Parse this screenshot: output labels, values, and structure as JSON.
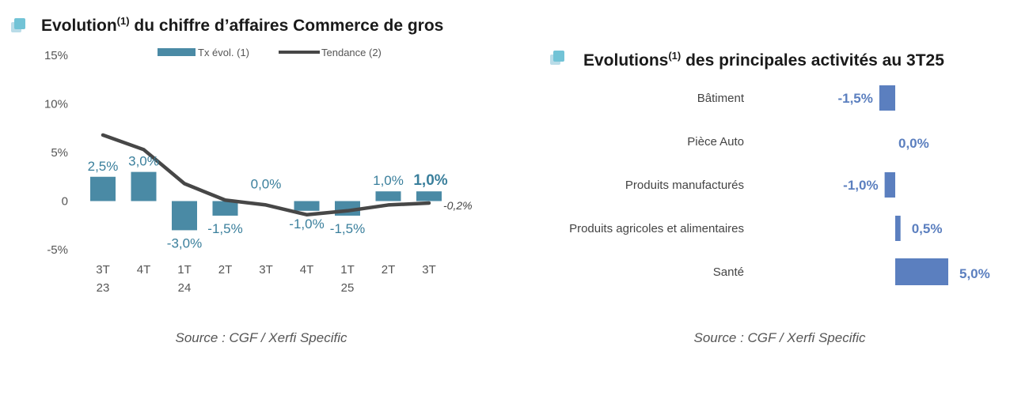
{
  "colors": {
    "bar": "#4a8aa5",
    "trend": "#474747",
    "bar_label": "#3a7f9c",
    "hbar": "#5b7fbf",
    "icon_front": "#72c3d6",
    "icon_back": "#b9dce8"
  },
  "left_chart": {
    "title_main": "Evolution",
    "title_sup": "(1)",
    "title_rest": " du chiffre d’affaires Commerce de gros",
    "source": "Source : CGF / Xerfi Specific",
    "chart_data": {
      "type": "bar",
      "categories": [
        {
          "line1": "3T",
          "line2": "23"
        },
        {
          "line1": "4T",
          "line2": ""
        },
        {
          "line1": "1T",
          "line2": "24"
        },
        {
          "line1": "2T",
          "line2": ""
        },
        {
          "line1": "3T",
          "line2": ""
        },
        {
          "line1": "4T",
          "line2": ""
        },
        {
          "line1": "1T",
          "line2": "25"
        },
        {
          "line1": "2T",
          "line2": ""
        },
        {
          "line1": "3T",
          "line2": ""
        }
      ],
      "ylim": [
        -5,
        15
      ],
      "yticks": [
        {
          "value": 15,
          "label": "15%"
        },
        {
          "value": 10,
          "label": "10%"
        },
        {
          "value": 5,
          "label": "5%"
        },
        {
          "value": 0,
          "label": "0"
        },
        {
          "value": -5,
          "label": "-5%"
        }
      ],
      "legend": {
        "bar_label": "Tx évol. (1)",
        "line_label": "Tendance (2)"
      },
      "series": [
        {
          "name": "Tx évol. (1)",
          "type": "bar",
          "values": [
            2.5,
            3.0,
            -3.0,
            -1.5,
            0.0,
            -1.0,
            -1.5,
            1.0,
            1.0
          ],
          "labels": [
            "2,5%",
            "3,0%",
            "-3,0%",
            "-1,5%",
            "0,0%",
            "-1,0%",
            "-1,5%",
            "1,0%",
            "1,0%"
          ]
        },
        {
          "name": "Tendance (2)",
          "type": "line",
          "values": [
            6.8,
            5.3,
            1.8,
            0.1,
            -0.4,
            -1.4,
            -1.0,
            -0.4,
            -0.2
          ],
          "end_label": "-0,2%"
        }
      ]
    }
  },
  "right_chart": {
    "title_main": "Evolutions",
    "title_sup": "(1)",
    "title_rest": " des principales activités au 3T25",
    "source": "Source : CGF / Xerfi Specific",
    "chart_data": {
      "type": "bar",
      "orientation": "horizontal",
      "categories": [
        "Bâtiment",
        "Pièce Auto",
        "Produits manufacturés",
        "Produits agricoles et alimentaires",
        "Santé"
      ],
      "values": [
        -1.5,
        0.0,
        -1.0,
        0.5,
        5.0
      ],
      "labels": [
        "-1,5%",
        "0,0%",
        "-1,0%",
        "0,5%",
        "5,0%"
      ]
    }
  }
}
